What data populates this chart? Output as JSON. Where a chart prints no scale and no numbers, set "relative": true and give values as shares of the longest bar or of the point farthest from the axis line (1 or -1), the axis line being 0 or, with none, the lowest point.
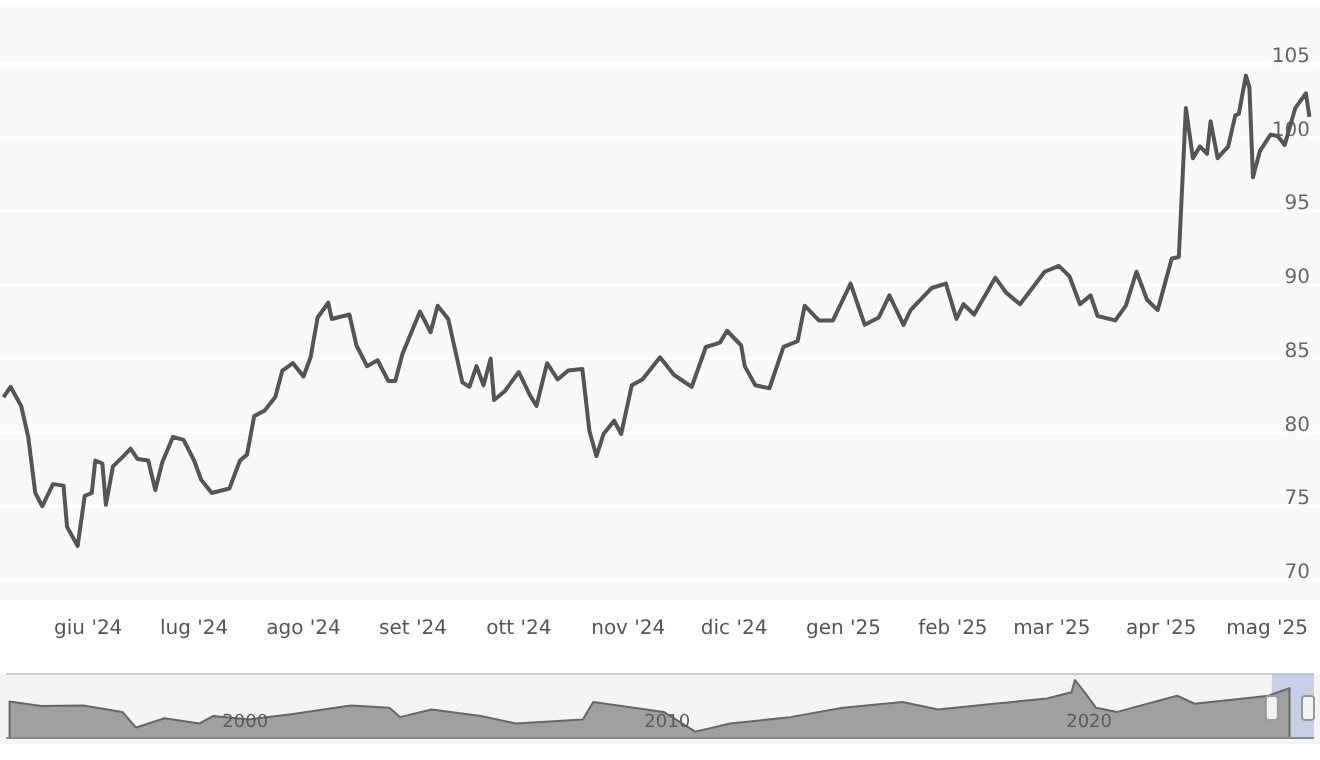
{
  "chart_data": [
    {
      "type": "line",
      "xlim": [
        "2024-05-07",
        "2025-05-16"
      ],
      "ylim": [
        70,
        109
      ],
      "yticks": [
        70,
        75,
        80,
        85,
        90,
        95,
        100,
        105
      ],
      "xticks": [
        {
          "value": "2024-06-01",
          "label": "giu '24"
        },
        {
          "value": "2024-07-01",
          "label": "lug '24"
        },
        {
          "value": "2024-08-01",
          "label": "ago '24"
        },
        {
          "value": "2024-09-01",
          "label": "set '24"
        },
        {
          "value": "2024-10-01",
          "label": "ott '24"
        },
        {
          "value": "2024-11-01",
          "label": "nov '24"
        },
        {
          "value": "2024-12-01",
          "label": "dic '24"
        },
        {
          "value": "2025-01-01",
          "label": "gen '25"
        },
        {
          "value": "2025-02-01",
          "label": "feb '25"
        },
        {
          "value": "2025-03-01",
          "label": "mar '25"
        },
        {
          "value": "2025-04-01",
          "label": "apr '25"
        },
        {
          "value": "2025-05-01",
          "label": "mag '25"
        }
      ],
      "grid": "y",
      "marker": "none",
      "line_style": "solid",
      "series": [
        {
          "color": "#555555",
          "x": [
            "2024-05-08",
            "2024-05-10",
            "2024-05-13",
            "2024-05-15",
            "2024-05-17",
            "2024-05-19",
            "2024-05-22",
            "2024-05-25",
            "2024-05-26",
            "2024-05-29",
            "2024-05-31",
            "2024-06-02",
            "2024-06-03",
            "2024-06-05",
            "2024-06-06",
            "2024-06-08",
            "2024-06-11",
            "2024-06-13",
            "2024-06-15",
            "2024-06-18",
            "2024-06-20",
            "2024-06-22",
            "2024-06-25",
            "2024-06-28",
            "2024-07-01",
            "2024-07-03",
            "2024-07-06",
            "2024-07-11",
            "2024-07-14",
            "2024-07-16",
            "2024-07-18",
            "2024-07-21",
            "2024-07-24",
            "2024-07-26",
            "2024-07-29",
            "2024-08-01",
            "2024-08-03",
            "2024-08-05",
            "2024-08-08",
            "2024-08-09",
            "2024-08-14",
            "2024-08-16",
            "2024-08-19",
            "2024-08-22",
            "2024-08-25",
            "2024-08-27",
            "2024-08-29",
            "2024-09-03",
            "2024-09-06",
            "2024-09-08",
            "2024-09-11",
            "2024-09-15",
            "2024-09-17",
            "2024-09-19",
            "2024-09-21",
            "2024-09-23",
            "2024-09-24",
            "2024-09-27",
            "2024-10-01",
            "2024-10-04",
            "2024-10-06",
            "2024-10-09",
            "2024-10-12",
            "2024-10-15",
            "2024-10-19",
            "2024-10-21",
            "2024-10-23",
            "2024-10-25",
            "2024-10-28",
            "2024-10-30",
            "2024-11-02",
            "2024-11-05",
            "2024-11-08",
            "2024-11-10",
            "2024-11-14",
            "2024-11-19",
            "2024-11-23",
            "2024-11-27",
            "2024-11-29",
            "2024-12-03",
            "2024-12-04",
            "2024-12-07",
            "2024-12-11",
            "2024-12-15",
            "2024-12-19",
            "2024-12-21",
            "2024-12-25",
            "2024-12-29",
            "2025-01-03",
            "2025-01-07",
            "2025-01-11",
            "2025-01-14",
            "2025-01-18",
            "2025-01-20",
            "2025-01-26",
            "2025-01-30",
            "2025-02-02",
            "2025-02-04",
            "2025-02-07",
            "2025-02-13",
            "2025-02-16",
            "2025-02-20",
            "2025-02-27",
            "2025-03-03",
            "2025-03-06",
            "2025-03-09",
            "2025-03-12",
            "2025-03-14",
            "2025-03-19",
            "2025-03-22",
            "2025-03-25",
            "2025-03-28",
            "2025-03-31",
            "2025-04-04",
            "2025-04-06",
            "2025-04-08",
            "2025-04-10",
            "2025-04-12",
            "2025-04-14",
            "2025-04-15",
            "2025-04-17",
            "2025-04-20",
            "2025-04-22",
            "2025-04-23",
            "2025-04-25",
            "2025-04-26",
            "2025-04-27",
            "2025-04-29",
            "2025-05-02",
            "2025-05-04",
            "2025-05-06",
            "2025-05-09",
            "2025-05-12",
            "2025-05-13"
          ],
          "values": [
            82.4,
            83.1,
            81.8,
            79.7,
            75.9,
            75.0,
            76.5,
            76.4,
            73.6,
            72.3,
            75.7,
            75.9,
            78.1,
            77.9,
            75.1,
            77.7,
            78.4,
            78.9,
            78.2,
            78.1,
            76.1,
            78.0,
            79.7,
            79.5,
            78.1,
            76.8,
            75.9,
            76.2,
            78.1,
            78.5,
            81.1,
            81.5,
            82.4,
            84.2,
            84.7,
            83.8,
            85.1,
            87.8,
            88.8,
            87.7,
            88.0,
            85.9,
            84.5,
            84.9,
            83.5,
            83.5,
            85.3,
            88.2,
            86.8,
            88.6,
            87.7,
            83.4,
            83.1,
            84.5,
            83.2,
            85.0,
            82.2,
            82.8,
            84.1,
            82.6,
            81.8,
            84.7,
            83.6,
            84.2,
            84.3,
            80.1,
            78.4,
            79.9,
            80.8,
            79.9,
            83.2,
            83.6,
            84.5,
            85.1,
            83.9,
            83.1,
            85.8,
            86.1,
            86.9,
            85.9,
            84.5,
            83.2,
            83.0,
            85.8,
            86.2,
            88.6,
            87.6,
            87.6,
            90.1,
            87.3,
            87.8,
            89.3,
            87.3,
            88.3,
            89.8,
            90.1,
            87.7,
            88.7,
            88.0,
            90.5,
            89.5,
            88.7,
            90.9,
            91.3,
            90.6,
            88.7,
            89.3,
            87.9,
            87.6,
            88.6,
            90.9,
            89.0,
            88.3,
            91.8,
            91.9,
            102.0,
            98.6,
            99.4,
            98.9,
            101.1,
            98.6,
            99.4,
            101.5,
            101.6,
            104.2,
            103.4,
            97.3,
            99.1,
            100.2,
            100.1,
            99.5,
            102.0,
            103.0,
            101.4
          ]
        }
      ]
    },
    {
      "type": "area",
      "relative": true,
      "tick_labels": "x",
      "xlim": [
        "1994-05",
        "2025-05"
      ],
      "xticks": [
        {
          "value": "2000-01-01",
          "label": "2000"
        },
        {
          "value": "2010-01-01",
          "label": "2010"
        },
        {
          "value": "2020-01-01",
          "label": "2020"
        }
      ],
      "bands": [
        {
          "axis": "x",
          "from": "2024-05",
          "to": "2025-05",
          "color": "#a9b4dc"
        }
      ],
      "series": [
        {
          "color": "#a0a0a0",
          "x": [
            "1994-06",
            "1995-03",
            "1996-03",
            "1997-02",
            "1997-06",
            "1998-02",
            "1998-12",
            "1999-04",
            "2000-02",
            "2001-02",
            "2002-07",
            "2003-06",
            "2003-09",
            "2004-06",
            "2005-08",
            "2006-06",
            "2008-01",
            "2008-04",
            "2008-12",
            "2009-12",
            "2010-09",
            "2011-07",
            "2012-12",
            "2014-03",
            "2015-08",
            "2016-06",
            "2017-10",
            "2019-01",
            "2019-08",
            "2019-09",
            "2019-12",
            "2020-03",
            "2020-09",
            "2022-02",
            "2022-07",
            "2023-09",
            "2024-04",
            "2024-10"
          ],
          "values": [
            0.63,
            0.55,
            0.56,
            0.45,
            0.18,
            0.34,
            0.25,
            0.38,
            0.32,
            0.41,
            0.56,
            0.52,
            0.36,
            0.49,
            0.38,
            0.25,
            0.32,
            0.62,
            0.55,
            0.45,
            0.11,
            0.25,
            0.36,
            0.52,
            0.62,
            0.49,
            0.59,
            0.68,
            0.79,
            1,
            0.77,
            0.52,
            0.45,
            0.73,
            0.59,
            0.68,
            0.73,
            0.86
          ]
        }
      ]
    }
  ]
}
